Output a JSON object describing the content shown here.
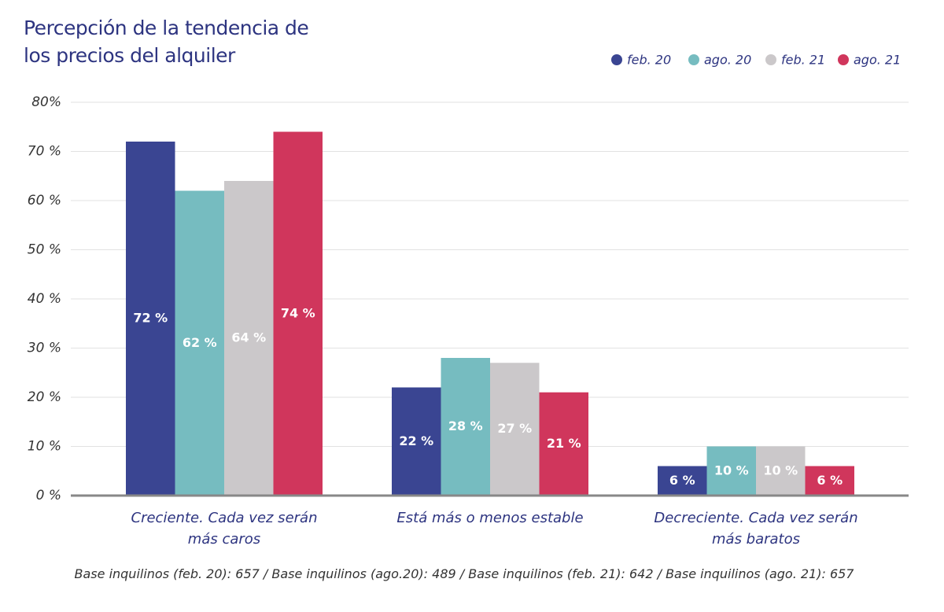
{
  "chart_data": {
    "type": "bar",
    "title": "Percepción de la tendencia de los precios del alquiler",
    "categories": [
      "Creciente. Cada vez serán más caros",
      "Está más o menos estable",
      "Decreciente. Cada vez serán más baratos"
    ],
    "series": [
      {
        "name": "feb. 20",
        "color": "#3a4592",
        "values": [
          72,
          22,
          6
        ],
        "value_labels": [
          "72 %",
          "22 %",
          "6 %"
        ]
      },
      {
        "name": "ago. 20",
        "color": "#76bcc0",
        "values": [
          62,
          28,
          10
        ],
        "value_labels": [
          "62 %",
          "28 %",
          "10 %"
        ]
      },
      {
        "name": "feb. 21",
        "color": "#cbc8ca",
        "values": [
          64,
          27,
          10
        ],
        "value_labels": [
          "64 %",
          "27 %",
          "10 %"
        ]
      },
      {
        "name": "ago. 21",
        "color": "#d0365c",
        "values": [
          74,
          21,
          6
        ],
        "value_labels": [
          "74 %",
          "21 %",
          "6 %"
        ]
      }
    ],
    "ylim": [
      0,
      80
    ],
    "yticks": [
      {
        "value": 0,
        "label": "0 %"
      },
      {
        "value": 10,
        "label": "10 %"
      },
      {
        "value": 20,
        "label": "20 %"
      },
      {
        "value": 30,
        "label": "30 %"
      },
      {
        "value": 40,
        "label": "40 %"
      },
      {
        "value": 50,
        "label": "50 %"
      },
      {
        "value": 60,
        "label": "60 %"
      },
      {
        "value": 70,
        "label": "70 %"
      },
      {
        "value": 80,
        "label": "80%"
      }
    ],
    "grid": true,
    "legend": "top-right",
    "footnote": "Base inquilinos (feb. 20): 657 / Base inquilinos (ago.20): 489 / Base inquilinos (feb. 21): 642 / Base inquilinos (ago. 21): 657"
  }
}
